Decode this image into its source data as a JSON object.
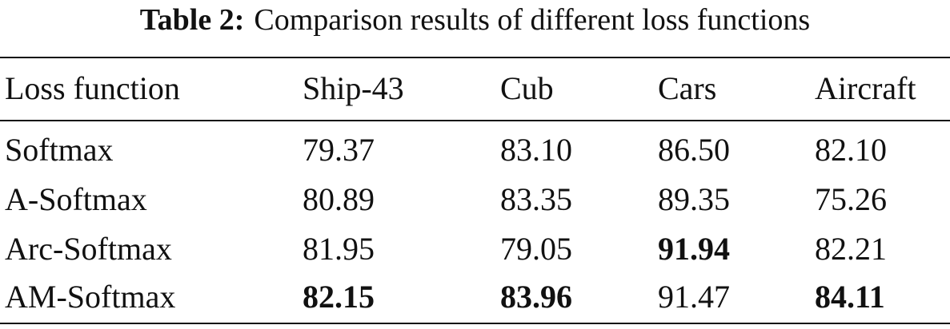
{
  "caption": {
    "label": "Table 2:",
    "text": "Comparison results of different loss functions"
  },
  "table": {
    "header": [
      "Loss function",
      "Ship-43",
      "Cub",
      "Cars",
      "Aircraft"
    ],
    "rows": [
      [
        {
          "text": "Softmax",
          "bold": false
        },
        {
          "text": "79.37",
          "bold": false
        },
        {
          "text": "83.10",
          "bold": false
        },
        {
          "text": "86.50",
          "bold": false
        },
        {
          "text": "82.10",
          "bold": false
        }
      ],
      [
        {
          "text": "A-Softmax",
          "bold": false
        },
        {
          "text": "80.89",
          "bold": false
        },
        {
          "text": "83.35",
          "bold": false
        },
        {
          "text": "89.35",
          "bold": false
        },
        {
          "text": "75.26",
          "bold": false
        }
      ],
      [
        {
          "text": "Arc-Softmax",
          "bold": false
        },
        {
          "text": "81.95",
          "bold": false
        },
        {
          "text": "79.05",
          "bold": false
        },
        {
          "text": "91.94",
          "bold": true
        },
        {
          "text": "82.21",
          "bold": false
        }
      ],
      [
        {
          "text": "AM-Softmax",
          "bold": false
        },
        {
          "text": "82.15",
          "bold": true
        },
        {
          "text": "83.96",
          "bold": true
        },
        {
          "text": "91.47",
          "bold": false
        },
        {
          "text": "84.11",
          "bold": true
        }
      ]
    ]
  }
}
